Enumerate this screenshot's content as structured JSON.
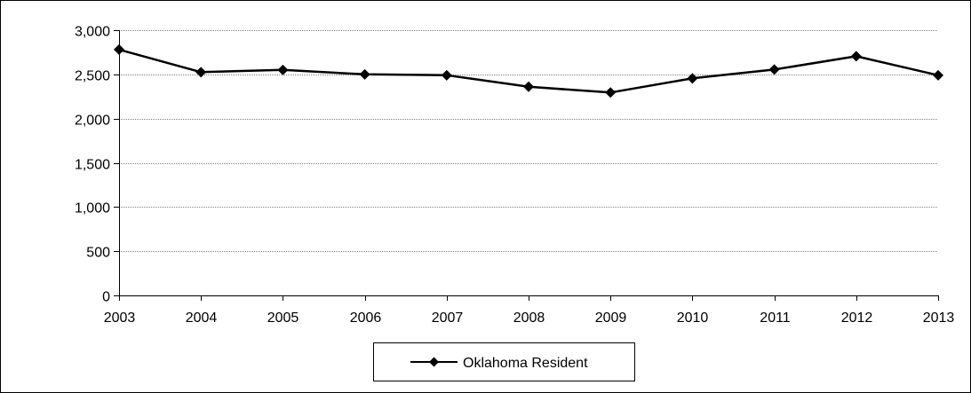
{
  "chart_data": {
    "type": "line",
    "title": "",
    "xlabel": "",
    "ylabel": "",
    "categories": [
      "2003",
      "2004",
      "2005",
      "2006",
      "2007",
      "2008",
      "2009",
      "2010",
      "2011",
      "2012",
      "2013"
    ],
    "series": [
      {
        "name": "Oklahoma Resident",
        "values": [
          2780,
          2525,
          2550,
          2500,
          2490,
          2360,
          2295,
          2455,
          2555,
          2705,
          2490
        ]
      }
    ],
    "ylim": [
      0,
      3000
    ],
    "yticks": [
      {
        "value": 0,
        "label": "0"
      },
      {
        "value": 500,
        "label": "500"
      },
      {
        "value": 1000,
        "label": "1,000"
      },
      {
        "value": 1500,
        "label": "1,500"
      },
      {
        "value": 2000,
        "label": "2,000"
      },
      {
        "value": 2500,
        "label": "2,500"
      },
      {
        "value": 3000,
        "label": "3,000"
      }
    ],
    "grid": true,
    "legend_position": "bottom",
    "colors": {
      "line": "#000000",
      "grid": "#808080",
      "axis": "#000000"
    }
  }
}
